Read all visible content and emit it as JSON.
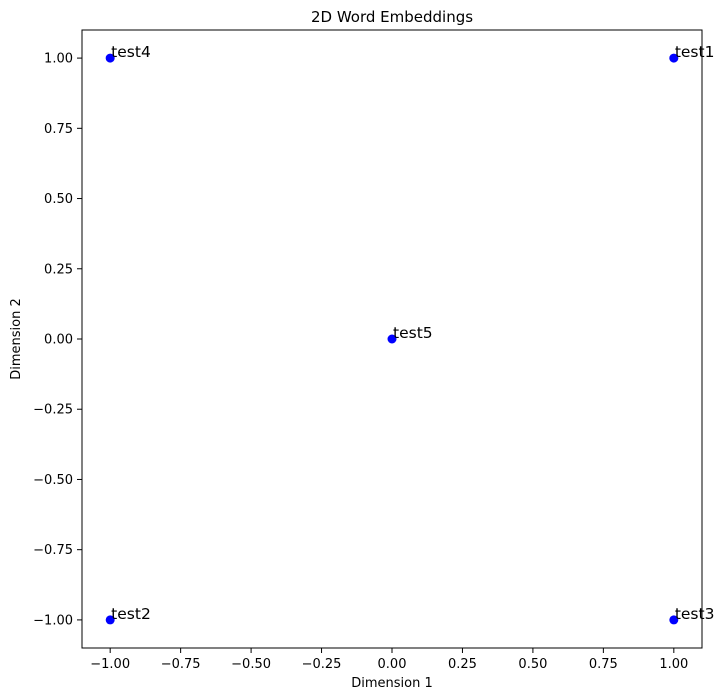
{
  "chart_data": {
    "type": "scatter",
    "title": "2D Word Embeddings",
    "xlabel": "Dimension 1",
    "ylabel": "Dimension 2",
    "xlim": [
      -1.1,
      1.1
    ],
    "ylim": [
      -1.1,
      1.1
    ],
    "grid": false,
    "marker_color": "#0000ff",
    "xticks": [
      -1.0,
      -0.75,
      -0.5,
      -0.25,
      0.0,
      0.25,
      0.5,
      0.75,
      1.0
    ],
    "xtick_labels": [
      "−1.00",
      "−0.75",
      "−0.50",
      "−0.25",
      "0.00",
      "0.25",
      "0.50",
      "0.75",
      "1.00"
    ],
    "yticks": [
      1.0,
      0.75,
      0.5,
      0.25,
      0.0,
      -0.25,
      -0.5,
      -0.75,
      -1.0
    ],
    "ytick_labels": [
      "1.00",
      "0.75",
      "0.50",
      "0.25",
      "0.00",
      "−0.25",
      "−0.50",
      "−0.75",
      "−1.00"
    ],
    "points": [
      {
        "label": "test1",
        "x": 1.0,
        "y": 1.0
      },
      {
        "label": "test2",
        "x": -1.0,
        "y": -1.0
      },
      {
        "label": "test3",
        "x": 1.0,
        "y": -1.0
      },
      {
        "label": "test4",
        "x": -1.0,
        "y": 1.0
      },
      {
        "label": "test5",
        "x": 0.0,
        "y": 0.0
      }
    ]
  }
}
